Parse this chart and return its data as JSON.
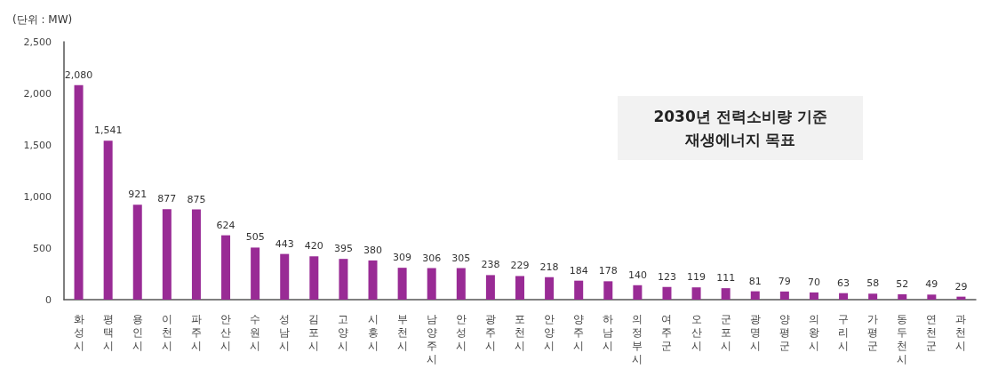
{
  "chart_data": {
    "type": "bar",
    "title": "2030년 전력소비량 기준\n재생에너지 목표",
    "ylabel": "(단위 : MW)",
    "categories": [
      "화성시",
      "평택시",
      "용인시",
      "이천시",
      "파주시",
      "안산시",
      "수원시",
      "성남시",
      "김포시",
      "고양시",
      "시흥시",
      "부천시",
      "남양주시",
      "안성시",
      "광주시",
      "포천시",
      "안양시",
      "양주시",
      "하남시",
      "의정부시",
      "여주군",
      "오산시",
      "군포시",
      "광명시",
      "양평군",
      "의왕시",
      "구리시",
      "가평군",
      "동두천시",
      "연천군",
      "과천시"
    ],
    "values": [
      2080,
      1541,
      921,
      877,
      875,
      624,
      505,
      443,
      420,
      395,
      380,
      309,
      306,
      305,
      238,
      229,
      218,
      184,
      178,
      140,
      123,
      119,
      111,
      81,
      79,
      70,
      63,
      58,
      52,
      49,
      29
    ],
    "value_labels": [
      "2,080",
      "1,541",
      "921",
      "877",
      "875",
      "624",
      "505",
      "443",
      "420",
      "395",
      "380",
      "309",
      "306",
      "305",
      "238",
      "229",
      "218",
      "184",
      "178",
      "140",
      "123",
      "119",
      "111",
      "81",
      "79",
      "70",
      "63",
      "58",
      "52",
      "49",
      "29"
    ],
    "color": "#992b95",
    "ylim": [
      0,
      2500
    ],
    "yticks": [
      0,
      500,
      {
        "value": 1000,
        "label": "1,000"
      },
      {
        "value": 1500,
        "label": "1,500"
      },
      {
        "value": 2000,
        "label": "2,000"
      },
      {
        "value": 2500,
        "label": "2,500"
      }
    ]
  }
}
